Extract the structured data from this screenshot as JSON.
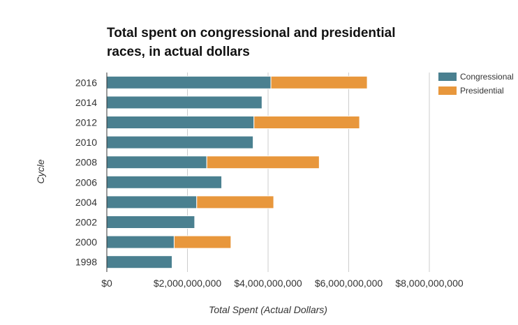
{
  "title": "Total spent on congressional and presidential races, in actual dollars",
  "colors": {
    "congressional": "#4a8090",
    "presidential": "#e8973c",
    "grid": "#cccccc",
    "axis": "#333333",
    "text": "#333333"
  },
  "chart_data": {
    "type": "bar",
    "orientation": "horizontal",
    "stacked": true,
    "title": "Total spent on congressional and presidential races, in actual dollars",
    "xlabel": "Total Spent (Actual Dollars)",
    "ylabel": "Cycle",
    "xlim": [
      0,
      8000000000
    ],
    "x_ticks": [
      0,
      2000000000,
      4000000000,
      6000000000,
      8000000000
    ],
    "x_tick_labels": [
      "$0",
      "$2,000,000,000",
      "$4,000,000,000",
      "$6,000,000,000",
      "$8,000,000,000"
    ],
    "categories": [
      "2016",
      "2014",
      "2012",
      "2010",
      "2008",
      "2006",
      "2004",
      "2002",
      "2000",
      "1998"
    ],
    "series": [
      {
        "name": "Congressional",
        "values": [
          4070000000,
          3850000000,
          3650000000,
          3630000000,
          2480000000,
          2850000000,
          2230000000,
          2180000000,
          1670000000,
          1620000000
        ]
      },
      {
        "name": "Presidential",
        "values": [
          2390000000,
          0,
          2620000000,
          0,
          2790000000,
          0,
          1910000000,
          0,
          1410000000,
          0
        ]
      }
    ],
    "grid": true,
    "legend_position": "top-right"
  }
}
